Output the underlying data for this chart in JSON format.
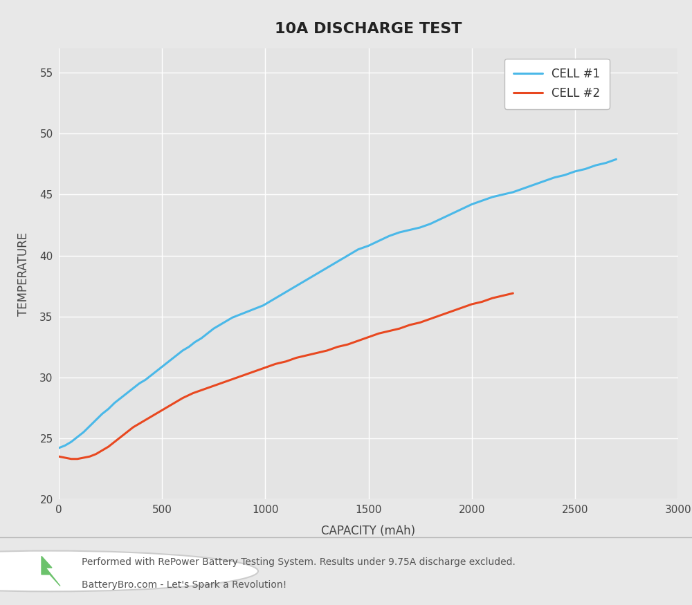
{
  "title": "10A DISCHARGE TEST",
  "xlabel": "CAPACITY (mAh)",
  "ylabel": "TEMPERATURE",
  "xlim": [
    0,
    3000
  ],
  "ylim": [
    20,
    57
  ],
  "xticks": [
    0,
    500,
    1000,
    1500,
    2000,
    2500,
    3000
  ],
  "yticks": [
    20,
    25,
    30,
    35,
    40,
    45,
    50,
    55
  ],
  "bg_color": "#e8e8e8",
  "plot_bg_color": "#e4e4e4",
  "footer_bg_color": "#d8d8d8",
  "cell1_color": "#4ab8e8",
  "cell2_color": "#e84820",
  "cell1_label": "CELL #1",
  "cell2_label": "CELL #2",
  "footer_line1": "Performed with RePower Battery Testing System. Results under 9.75A discharge excluded.",
  "footer_line2": "BatteryBro.com - Let's Spark a Revolution!",
  "cell1_x": [
    0,
    30,
    60,
    90,
    120,
    150,
    180,
    210,
    240,
    270,
    300,
    330,
    360,
    390,
    420,
    450,
    480,
    510,
    540,
    570,
    600,
    630,
    660,
    690,
    720,
    750,
    780,
    810,
    840,
    870,
    900,
    930,
    960,
    990,
    1020,
    1060,
    1100,
    1150,
    1200,
    1250,
    1300,
    1350,
    1400,
    1450,
    1500,
    1550,
    1600,
    1650,
    1700,
    1750,
    1800,
    1850,
    1900,
    1950,
    2000,
    2050,
    2100,
    2150,
    2200,
    2250,
    2300,
    2350,
    2400,
    2450,
    2500,
    2550,
    2600,
    2650,
    2700
  ],
  "cell1_y": [
    24.2,
    24.4,
    24.7,
    25.1,
    25.5,
    26.0,
    26.5,
    27.0,
    27.4,
    27.9,
    28.3,
    28.7,
    29.1,
    29.5,
    29.8,
    30.2,
    30.6,
    31.0,
    31.4,
    31.8,
    32.2,
    32.5,
    32.9,
    33.2,
    33.6,
    34.0,
    34.3,
    34.6,
    34.9,
    35.1,
    35.3,
    35.5,
    35.7,
    35.9,
    36.2,
    36.6,
    37.0,
    37.5,
    38.0,
    38.5,
    39.0,
    39.5,
    40.0,
    40.5,
    40.8,
    41.2,
    41.6,
    41.9,
    42.1,
    42.3,
    42.6,
    43.0,
    43.4,
    43.8,
    44.2,
    44.5,
    44.8,
    45.0,
    45.2,
    45.5,
    45.8,
    46.1,
    46.4,
    46.6,
    46.9,
    47.1,
    47.4,
    47.6,
    47.9
  ],
  "cell2_x": [
    0,
    30,
    60,
    90,
    120,
    150,
    180,
    210,
    240,
    270,
    300,
    330,
    360,
    390,
    420,
    450,
    480,
    510,
    540,
    570,
    600,
    650,
    700,
    750,
    800,
    850,
    900,
    950,
    1000,
    1050,
    1100,
    1150,
    1200,
    1250,
    1300,
    1350,
    1400,
    1450,
    1500,
    1550,
    1600,
    1650,
    1700,
    1750,
    1800,
    1850,
    1900,
    1950,
    2000,
    2050,
    2100,
    2150,
    2200
  ],
  "cell2_y": [
    23.5,
    23.4,
    23.3,
    23.3,
    23.4,
    23.5,
    23.7,
    24.0,
    24.3,
    24.7,
    25.1,
    25.5,
    25.9,
    26.2,
    26.5,
    26.8,
    27.1,
    27.4,
    27.7,
    28.0,
    28.3,
    28.7,
    29.0,
    29.3,
    29.6,
    29.9,
    30.2,
    30.5,
    30.8,
    31.1,
    31.3,
    31.6,
    31.8,
    32.0,
    32.2,
    32.5,
    32.7,
    33.0,
    33.3,
    33.6,
    33.8,
    34.0,
    34.3,
    34.5,
    34.8,
    35.1,
    35.4,
    35.7,
    36.0,
    36.2,
    36.5,
    36.7,
    36.9
  ]
}
